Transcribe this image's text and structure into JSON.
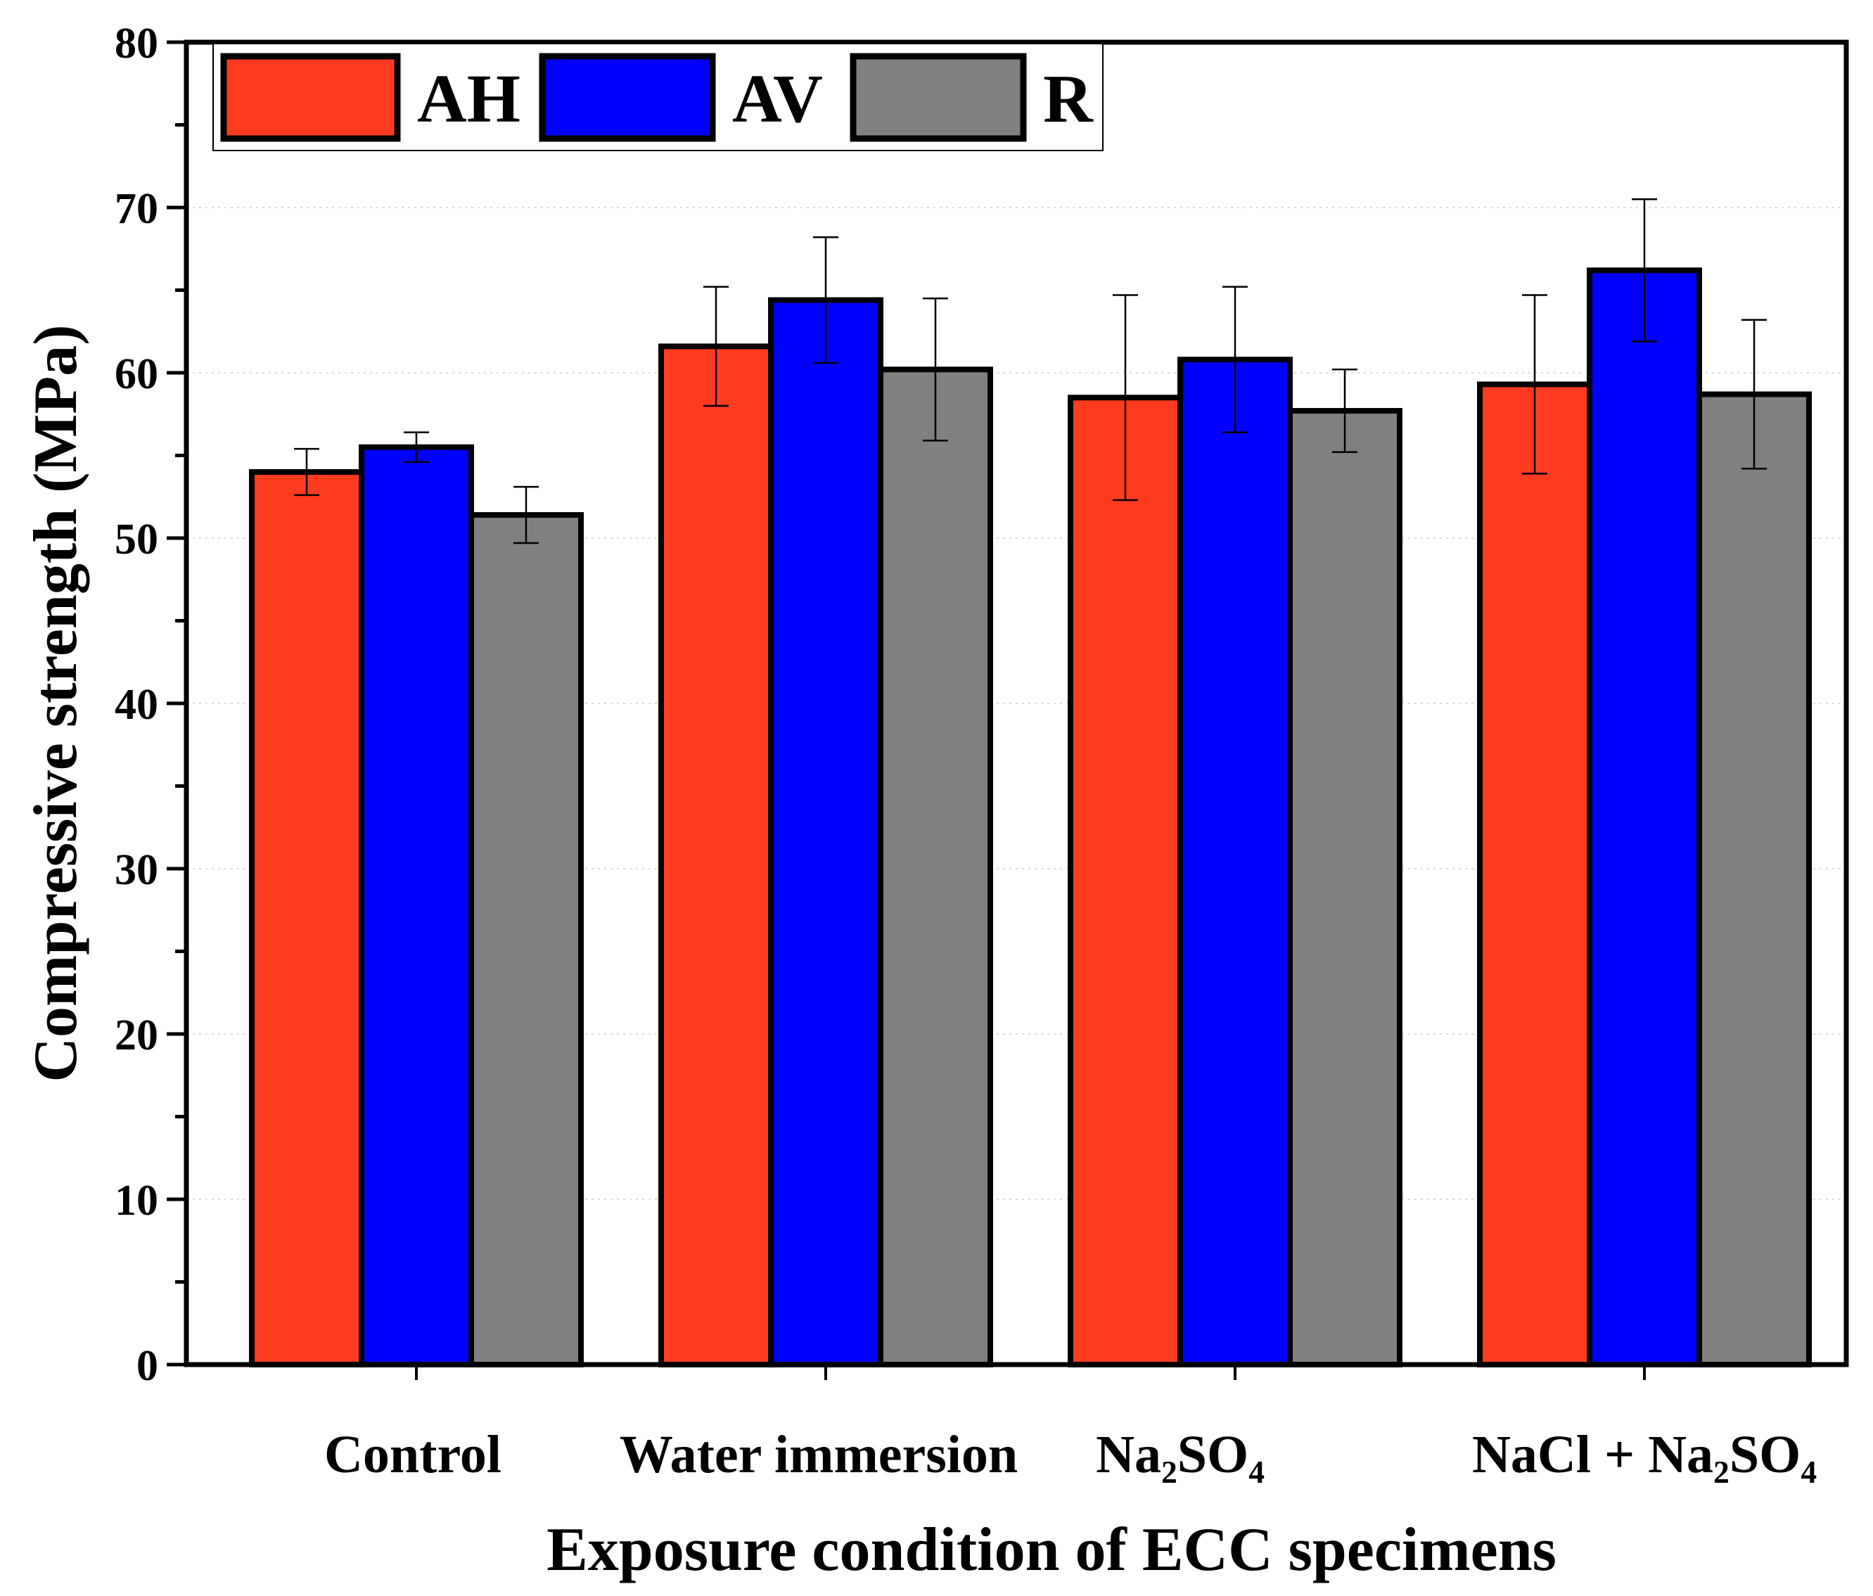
{
  "chart_data": {
    "type": "bar",
    "title": "",
    "xlabel": "Exposure condition of ECC specimens",
    "ylabel": "Compressive strength (MPa)",
    "ylim": [
      0,
      80
    ],
    "yticks": [
      "0",
      "10",
      "20",
      "30",
      "40",
      "50",
      "60",
      "70",
      "80"
    ],
    "categories": [
      "Control",
      "Water immersion",
      "Na₂SO₄",
      "NaCl + Na₂SO₄"
    ],
    "legend_position": "top-left",
    "grid": true,
    "series": [
      {
        "name": "AH",
        "color": "#ff3b1f",
        "values": [
          54.0,
          61.6,
          58.5,
          59.3
        ],
        "errors": [
          1.4,
          3.6,
          6.2,
          5.4
        ]
      },
      {
        "name": "AV",
        "color": "#0000ff",
        "values": [
          55.5,
          64.4,
          60.8,
          66.2
        ],
        "errors": [
          0.9,
          3.8,
          4.4,
          4.3
        ]
      },
      {
        "name": "R",
        "color": "#808080",
        "values": [
          51.4,
          60.2,
          57.7,
          58.7
        ],
        "errors": [
          1.7,
          4.3,
          2.5,
          4.5
        ]
      }
    ]
  }
}
